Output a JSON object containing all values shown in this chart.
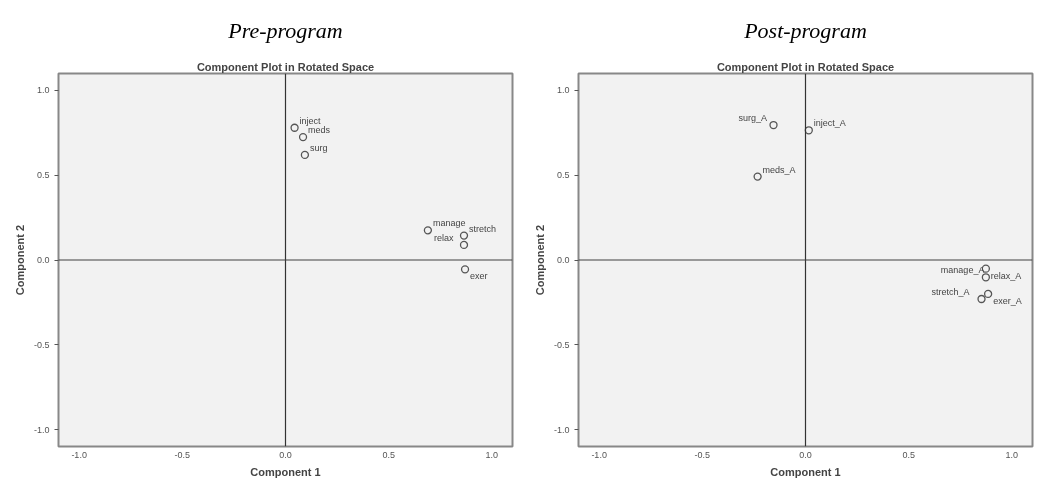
{
  "chart_data": [
    {
      "type": "scatter",
      "subtitle": "Pre-program",
      "title": "Component Plot in Rotated Space",
      "xlabel": "Component 1",
      "ylabel": "Component 2",
      "xlim": [
        -1.1,
        1.1
      ],
      "ylim": [
        -1.1,
        1.1
      ],
      "xticks": [
        {
          "value": -1,
          "label": "-1.0"
        },
        {
          "value": -0.5,
          "label": "-0.5"
        },
        {
          "value": 0,
          "label": "0.0"
        },
        {
          "value": 0.5,
          "label": "0.5"
        },
        {
          "value": 1,
          "label": "1.0"
        }
      ],
      "yticks": [
        {
          "value": -1,
          "label": "-1.0"
        },
        {
          "value": -0.5,
          "label": "-0.5"
        },
        {
          "value": 0,
          "label": "0.0"
        },
        {
          "value": 0.5,
          "label": "0.5"
        },
        {
          "value": 1,
          "label": "1.0"
        }
      ],
      "grid": false,
      "marker": "circle",
      "series": [
        {
          "color": "#555555",
          "x": [
            0.044,
            0.085,
            0.094,
            0.69,
            0.865,
            0.865,
            0.87
          ],
          "values": [
            0.78,
            0.725,
            0.62,
            0.175,
            0.144,
            0.089,
            -0.055
          ]
        }
      ],
      "annotations": [
        {
          "text": "inject",
          "x": 0.044,
          "y": 0.78
        },
        {
          "text": "meds",
          "x": 0.085,
          "y": 0.725
        },
        {
          "text": "surg",
          "x": 0.094,
          "y": 0.62
        },
        {
          "text": "manage",
          "x": 0.69,
          "y": 0.175
        },
        {
          "text": "stretch",
          "x": 0.865,
          "y": 0.144
        },
        {
          "text": "relax",
          "x": 0.865,
          "y": 0.089
        },
        {
          "text": "exer",
          "x": 0.87,
          "y": -0.055
        }
      ],
      "ref_lines": [
        {
          "axis": "x",
          "value": 0,
          "color": "#333333"
        },
        {
          "axis": "y",
          "value": 0,
          "color": "#404040"
        }
      ]
    },
    {
      "type": "scatter",
      "subtitle": "Post-program",
      "title": "Component Plot in Rotated Space",
      "xlabel": "Component 1",
      "ylabel": "Component 2",
      "xlim": [
        -1.1,
        1.1
      ],
      "ylim": [
        -1.1,
        1.1
      ],
      "xticks": [
        {
          "value": -1,
          "label": "-1.0"
        },
        {
          "value": -0.5,
          "label": "-0.5"
        },
        {
          "value": 0,
          "label": "0.0"
        },
        {
          "value": 0.5,
          "label": "0.5"
        },
        {
          "value": 1,
          "label": "1.0"
        }
      ],
      "yticks": [
        {
          "value": -1,
          "label": "-1.0"
        },
        {
          "value": -0.5,
          "label": "-0.5"
        },
        {
          "value": 0,
          "label": "0.0"
        },
        {
          "value": 0.5,
          "label": "0.5"
        },
        {
          "value": 1,
          "label": "1.0"
        }
      ],
      "grid": false,
      "marker": "circle",
      "series": [
        {
          "color": "#555555",
          "x": [
            -0.155,
            0.016,
            -0.232,
            0.874,
            0.874,
            0.885,
            0.853
          ],
          "values": [
            0.796,
            0.765,
            0.492,
            -0.051,
            -0.102,
            -0.2,
            -0.23
          ]
        }
      ],
      "annotations": [
        {
          "text": "surg_A",
          "x": -0.155,
          "y": 0.796
        },
        {
          "text": "inject_A",
          "x": 0.016,
          "y": 0.765
        },
        {
          "text": "meds_A",
          "x": -0.232,
          "y": 0.492
        },
        {
          "text": "relax_A",
          "x": 0.874,
          "y": -0.051
        },
        {
          "text": "manage_A",
          "x": 0.874,
          "y": -0.102
        },
        {
          "text": "exer_A",
          "x": 0.885,
          "y": -0.2
        },
        {
          "text": "stretch_A",
          "x": 0.853,
          "y": -0.23
        }
      ],
      "ref_lines": [
        {
          "axis": "x",
          "value": 0,
          "color": "#333333"
        },
        {
          "axis": "y",
          "value": 0,
          "color": "#404040"
        }
      ]
    }
  ]
}
